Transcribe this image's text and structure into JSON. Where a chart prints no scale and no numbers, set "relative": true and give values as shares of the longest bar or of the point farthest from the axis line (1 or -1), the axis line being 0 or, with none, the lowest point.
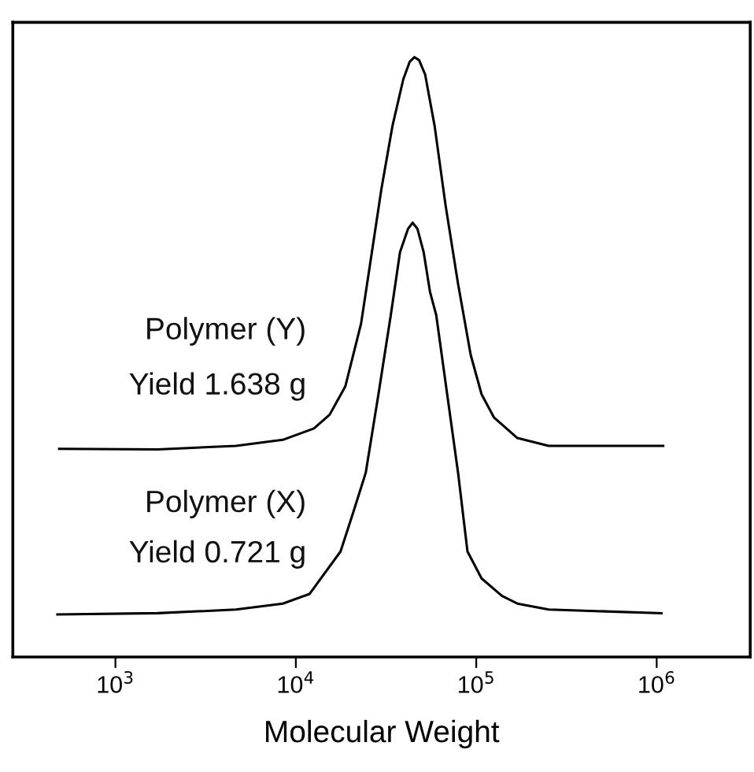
{
  "chart_data": {
    "type": "line",
    "xlabel": "Molecular Weight",
    "relative": true,
    "log": "x",
    "grid": false,
    "legend": false,
    "marker": "none",
    "line_style": "solid",
    "xlim": [
      270,
      3300000
    ],
    "xticks": [
      {
        "value": 1000,
        "label": "10$^{3}$"
      },
      {
        "value": 10000,
        "label": "10$^{4}$"
      },
      {
        "value": 100000,
        "label": "10$^{5}$"
      },
      {
        "value": 1000000,
        "label": "10$^{6}$"
      }
    ],
    "tick_labels": "x",
    "annotations": [
      "Yield 1.638 g",
      "Yield 0.721 g"
    ],
    "series": [
      {
        "name": "Polymer (Y)",
        "color": "#000000",
        "x": [
          488,
          1714,
          4660,
          8470,
          12600,
          15400,
          18800,
          23000,
          26400,
          29800,
          34300,
          39400,
          42700,
          45400,
          48200,
          52100,
          58800,
          67600,
          79300,
          93100,
          107000,
          125600,
          169000,
          252000,
          1087000
        ],
        "values": [
          0.347,
          0.346,
          0.352,
          0.362,
          0.381,
          0.404,
          0.451,
          0.556,
          0.675,
          0.78,
          0.885,
          0.963,
          0.992,
          1,
          0.995,
          0.971,
          0.885,
          0.753,
          0.622,
          0.504,
          0.438,
          0.399,
          0.365,
          0.352,
          0.352
        ]
      },
      {
        "name": "Polymer (X)",
        "color": "#000000",
        "x": [
          477,
          1714,
          4660,
          8470,
          11900,
          17700,
          20800,
          24400,
          28700,
          33600,
          37800,
          41900,
          44400,
          47200,
          51100,
          55400,
          60000,
          69000,
          79300,
          89400,
          107000,
          138700,
          169000,
          252000,
          1064000
        ],
        "values": [
          0.071,
          0.073,
          0.079,
          0.089,
          0.105,
          0.176,
          0.241,
          0.307,
          0.438,
          0.57,
          0.675,
          0.714,
          0.724,
          0.714,
          0.675,
          0.609,
          0.57,
          0.438,
          0.307,
          0.176,
          0.131,
          0.102,
          0.089,
          0.079,
          0.073
        ]
      }
    ]
  }
}
